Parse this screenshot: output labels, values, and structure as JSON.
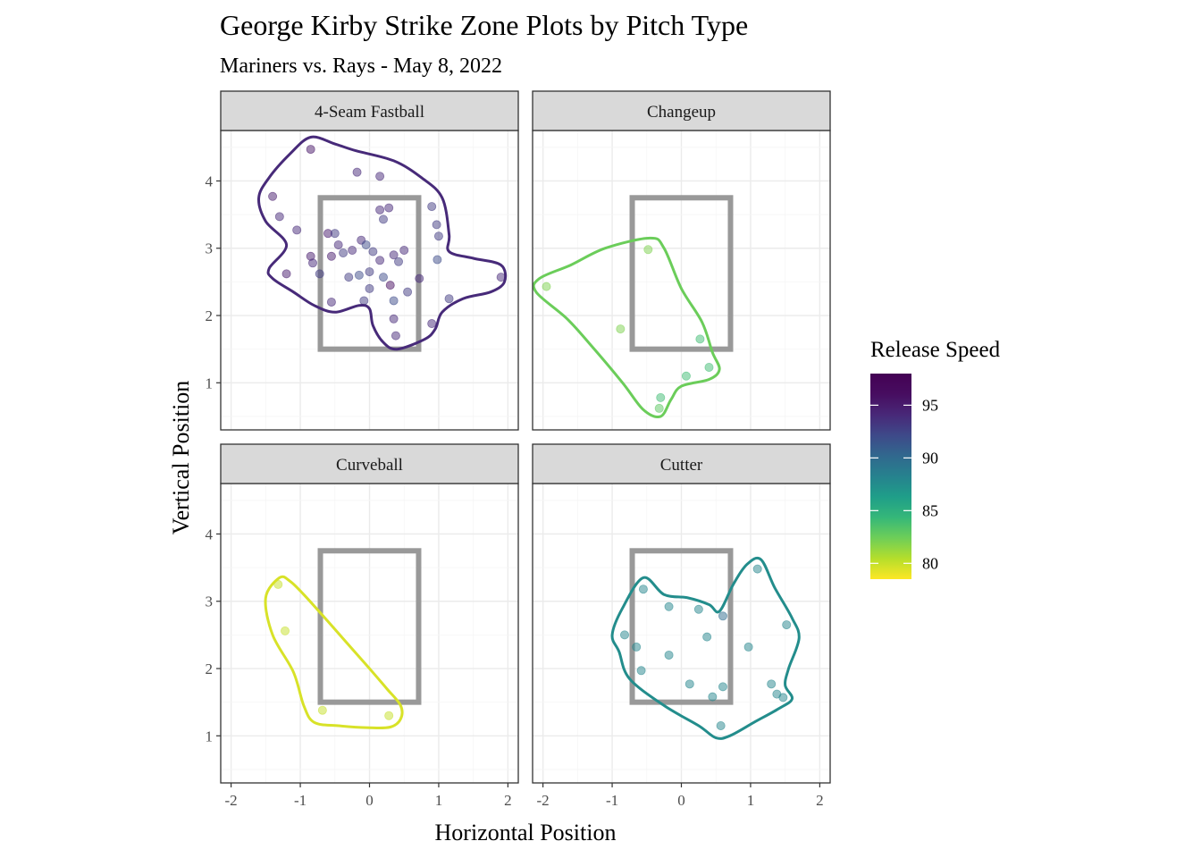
{
  "chart_data": {
    "type": "scatter",
    "title": "George Kirby Strike Zone Plots by Pitch Type",
    "subtitle": "Mariners vs. Rays - May 8, 2022",
    "xlabel": "Horizontal Position",
    "ylabel": "Vertical Position",
    "xlim": [
      -2.15,
      2.15
    ],
    "ylim": [
      0.3,
      4.75
    ],
    "x_ticks": [
      -2,
      -1,
      0,
      1,
      2
    ],
    "x_tick_labels": [
      "-2",
      "-1",
      "0",
      "1",
      "2"
    ],
    "y_ticks": [
      1,
      2,
      3,
      4
    ],
    "y_tick_labels": [
      "1",
      "2",
      "3",
      "4"
    ],
    "grid": true,
    "strike_zone": {
      "x_min": -0.71,
      "x_max": 0.71,
      "y_min": 1.5,
      "y_max": 3.75
    },
    "legend": {
      "title": "Release Speed",
      "position": "right",
      "range": [
        78.5,
        98
      ],
      "breaks": [
        80,
        85,
        90,
        95
      ],
      "break_labels": [
        "80",
        "85",
        "90",
        "95"
      ]
    },
    "panels": [
      {
        "name": "4-Seam Fastball",
        "hull_speed": 94,
        "hull": [
          [
            -0.85,
            4.65
          ],
          [
            -0.5,
            4.55
          ],
          [
            -0.2,
            4.45
          ],
          [
            0.35,
            4.3
          ],
          [
            0.75,
            4.05
          ],
          [
            1.05,
            3.75
          ],
          [
            1.15,
            3.2
          ],
          [
            1.15,
            2.95
          ],
          [
            1.5,
            2.85
          ],
          [
            1.9,
            2.75
          ],
          [
            1.95,
            2.5
          ],
          [
            1.75,
            2.35
          ],
          [
            1.35,
            2.25
          ],
          [
            1.05,
            2.05
          ],
          [
            0.95,
            1.8
          ],
          [
            0.8,
            1.65
          ],
          [
            0.4,
            1.5
          ],
          [
            0.2,
            1.6
          ],
          [
            0.05,
            1.85
          ],
          [
            0.0,
            2.1
          ],
          [
            -0.15,
            2.15
          ],
          [
            -0.5,
            2.05
          ],
          [
            -0.8,
            2.15
          ],
          [
            -1.1,
            2.35
          ],
          [
            -1.4,
            2.55
          ],
          [
            -1.45,
            2.7
          ],
          [
            -1.2,
            3.05
          ],
          [
            -1.5,
            3.4
          ],
          [
            -1.6,
            3.75
          ],
          [
            -1.45,
            4.05
          ],
          [
            -1.15,
            4.4
          ]
        ],
        "points": [
          {
            "x": -0.85,
            "y": 4.47,
            "speed": 95.5
          },
          {
            "x": -1.4,
            "y": 3.77,
            "speed": 95
          },
          {
            "x": -1.3,
            "y": 3.47,
            "speed": 94
          },
          {
            "x": -1.05,
            "y": 3.27,
            "speed": 94
          },
          {
            "x": -1.2,
            "y": 2.62,
            "speed": 95
          },
          {
            "x": -0.85,
            "y": 2.88,
            "speed": 95
          },
          {
            "x": -0.82,
            "y": 2.78,
            "speed": 94
          },
          {
            "x": -0.72,
            "y": 2.62,
            "speed": 93
          },
          {
            "x": -0.6,
            "y": 3.22,
            "speed": 95
          },
          {
            "x": -0.5,
            "y": 3.22,
            "speed": 93
          },
          {
            "x": -0.45,
            "y": 3.05,
            "speed": 94
          },
          {
            "x": -0.38,
            "y": 2.93,
            "speed": 93
          },
          {
            "x": -0.25,
            "y": 2.97,
            "speed": 94
          },
          {
            "x": -0.12,
            "y": 3.12,
            "speed": 94
          },
          {
            "x": -0.05,
            "y": 3.05,
            "speed": 92
          },
          {
            "x": -0.55,
            "y": 2.88,
            "speed": 95
          },
          {
            "x": 0.05,
            "y": 2.95,
            "speed": 93
          },
          {
            "x": 0.15,
            "y": 2.82,
            "speed": 94
          },
          {
            "x": 0.35,
            "y": 2.9,
            "speed": 94
          },
          {
            "x": 0.5,
            "y": 2.97,
            "speed": 94
          },
          {
            "x": 0.42,
            "y": 2.8,
            "speed": 93
          },
          {
            "x": -0.3,
            "y": 2.57,
            "speed": 93
          },
          {
            "x": -0.15,
            "y": 2.6,
            "speed": 92
          },
          {
            "x": 0.0,
            "y": 2.65,
            "speed": 93
          },
          {
            "x": 0.2,
            "y": 2.57,
            "speed": 92
          },
          {
            "x": 0.3,
            "y": 2.45,
            "speed": 96
          },
          {
            "x": 0.55,
            "y": 2.35,
            "speed": 93
          },
          {
            "x": 0.0,
            "y": 2.4,
            "speed": 93
          },
          {
            "x": -0.08,
            "y": 2.22,
            "speed": 93
          },
          {
            "x": -0.55,
            "y": 2.2,
            "speed": 94
          },
          {
            "x": 0.35,
            "y": 2.22,
            "speed": 92
          },
          {
            "x": 0.35,
            "y": 1.95,
            "speed": 94
          },
          {
            "x": 0.38,
            "y": 1.7,
            "speed": 94
          },
          {
            "x": 0.9,
            "y": 1.88,
            "speed": 94
          },
          {
            "x": -0.18,
            "y": 4.13,
            "speed": 94
          },
          {
            "x": 0.15,
            "y": 4.07,
            "speed": 94
          },
          {
            "x": 0.15,
            "y": 3.57,
            "speed": 94
          },
          {
            "x": 0.28,
            "y": 3.6,
            "speed": 94
          },
          {
            "x": 0.2,
            "y": 3.43,
            "speed": 93
          },
          {
            "x": 0.9,
            "y": 3.62,
            "speed": 93
          },
          {
            "x": 0.97,
            "y": 3.35,
            "speed": 93
          },
          {
            "x": 1.0,
            "y": 3.18,
            "speed": 93
          },
          {
            "x": 0.98,
            "y": 2.83,
            "speed": 92
          },
          {
            "x": 0.72,
            "y": 2.55,
            "speed": 94
          },
          {
            "x": 1.15,
            "y": 2.25,
            "speed": 93
          },
          {
            "x": 1.9,
            "y": 2.57,
            "speed": 94
          }
        ]
      },
      {
        "name": "Changeup",
        "hull_speed": 82.5,
        "hull": [
          [
            -0.45,
            3.15
          ],
          [
            -0.25,
            3.0
          ],
          [
            0.0,
            2.4
          ],
          [
            0.3,
            1.9
          ],
          [
            0.45,
            1.45
          ],
          [
            0.55,
            1.2
          ],
          [
            0.4,
            1.05
          ],
          [
            0.0,
            0.95
          ],
          [
            -0.15,
            0.75
          ],
          [
            -0.3,
            0.5
          ],
          [
            -0.55,
            0.6
          ],
          [
            -0.85,
            1.0
          ],
          [
            -1.3,
            1.55
          ],
          [
            -1.65,
            1.95
          ],
          [
            -2.1,
            2.35
          ],
          [
            -2.05,
            2.55
          ],
          [
            -1.6,
            2.75
          ],
          [
            -1.1,
            3.0
          ]
        ],
        "points": [
          {
            "x": -0.48,
            "y": 2.98,
            "speed": 82
          },
          {
            "x": -1.95,
            "y": 2.43,
            "speed": 82
          },
          {
            "x": -0.88,
            "y": 1.8,
            "speed": 82
          },
          {
            "x": 0.27,
            "y": 1.65,
            "speed": 84
          },
          {
            "x": 0.4,
            "y": 1.23,
            "speed": 84
          },
          {
            "x": 0.07,
            "y": 1.1,
            "speed": 84
          },
          {
            "x": -0.3,
            "y": 0.78,
            "speed": 84
          },
          {
            "x": -0.32,
            "y": 0.62,
            "speed": 83
          }
        ]
      },
      {
        "name": "Curveball",
        "hull_speed": 79.5,
        "hull": [
          [
            -1.3,
            3.35
          ],
          [
            -1.15,
            3.3
          ],
          [
            -0.95,
            3.1
          ],
          [
            -0.6,
            2.7
          ],
          [
            -0.3,
            2.35
          ],
          [
            0.0,
            2.0
          ],
          [
            0.25,
            1.7
          ],
          [
            0.45,
            1.45
          ],
          [
            0.45,
            1.25
          ],
          [
            0.3,
            1.13
          ],
          [
            0.0,
            1.12
          ],
          [
            -0.45,
            1.15
          ],
          [
            -0.8,
            1.2
          ],
          [
            -0.95,
            1.45
          ],
          [
            -1.1,
            1.95
          ],
          [
            -1.4,
            2.5
          ],
          [
            -1.5,
            3.05
          ]
        ],
        "points": [
          {
            "x": -1.32,
            "y": 3.25,
            "speed": 80
          },
          {
            "x": -1.22,
            "y": 2.56,
            "speed": 80
          },
          {
            "x": -0.68,
            "y": 1.38,
            "speed": 80
          },
          {
            "x": 0.28,
            "y": 1.3,
            "speed": 80
          }
        ]
      },
      {
        "name": "Cutter",
        "hull_speed": 87.5,
        "hull": [
          [
            -0.55,
            3.35
          ],
          [
            -0.25,
            3.1
          ],
          [
            0.1,
            3.05
          ],
          [
            0.4,
            2.95
          ],
          [
            0.55,
            2.85
          ],
          [
            0.75,
            3.25
          ],
          [
            0.95,
            3.55
          ],
          [
            1.15,
            3.62
          ],
          [
            1.35,
            3.2
          ],
          [
            1.6,
            2.75
          ],
          [
            1.7,
            2.45
          ],
          [
            1.55,
            2.0
          ],
          [
            1.5,
            1.75
          ],
          [
            1.6,
            1.55
          ],
          [
            1.4,
            1.4
          ],
          [
            1.05,
            1.2
          ],
          [
            0.7,
            1.0
          ],
          [
            0.5,
            0.97
          ],
          [
            0.25,
            1.15
          ],
          [
            -0.25,
            1.45
          ],
          [
            -0.75,
            1.85
          ],
          [
            -0.9,
            2.25
          ],
          [
            -1.0,
            2.5
          ],
          [
            -0.85,
            2.9
          ]
        ],
        "points": [
          {
            "x": 1.1,
            "y": 3.48,
            "speed": 88
          },
          {
            "x": -0.55,
            "y": 3.18,
            "speed": 88
          },
          {
            "x": -0.18,
            "y": 2.92,
            "speed": 88
          },
          {
            "x": 0.25,
            "y": 2.88,
            "speed": 88
          },
          {
            "x": 0.6,
            "y": 2.78,
            "speed": 90
          },
          {
            "x": 1.52,
            "y": 2.65,
            "speed": 88
          },
          {
            "x": -0.82,
            "y": 2.5,
            "speed": 88
          },
          {
            "x": 0.37,
            "y": 2.47,
            "speed": 88
          },
          {
            "x": -0.65,
            "y": 2.32,
            "speed": 88
          },
          {
            "x": 0.97,
            "y": 2.32,
            "speed": 88
          },
          {
            "x": -0.18,
            "y": 2.2,
            "speed": 88
          },
          {
            "x": -0.58,
            "y": 1.97,
            "speed": 88
          },
          {
            "x": 0.12,
            "y": 1.77,
            "speed": 88
          },
          {
            "x": 0.6,
            "y": 1.73,
            "speed": 88
          },
          {
            "x": 1.3,
            "y": 1.77,
            "speed": 88
          },
          {
            "x": 1.38,
            "y": 1.62,
            "speed": 88
          },
          {
            "x": 1.47,
            "y": 1.57,
            "speed": 88
          },
          {
            "x": 0.45,
            "y": 1.58,
            "speed": 88
          },
          {
            "x": 0.57,
            "y": 1.15,
            "speed": 88
          }
        ]
      }
    ]
  }
}
